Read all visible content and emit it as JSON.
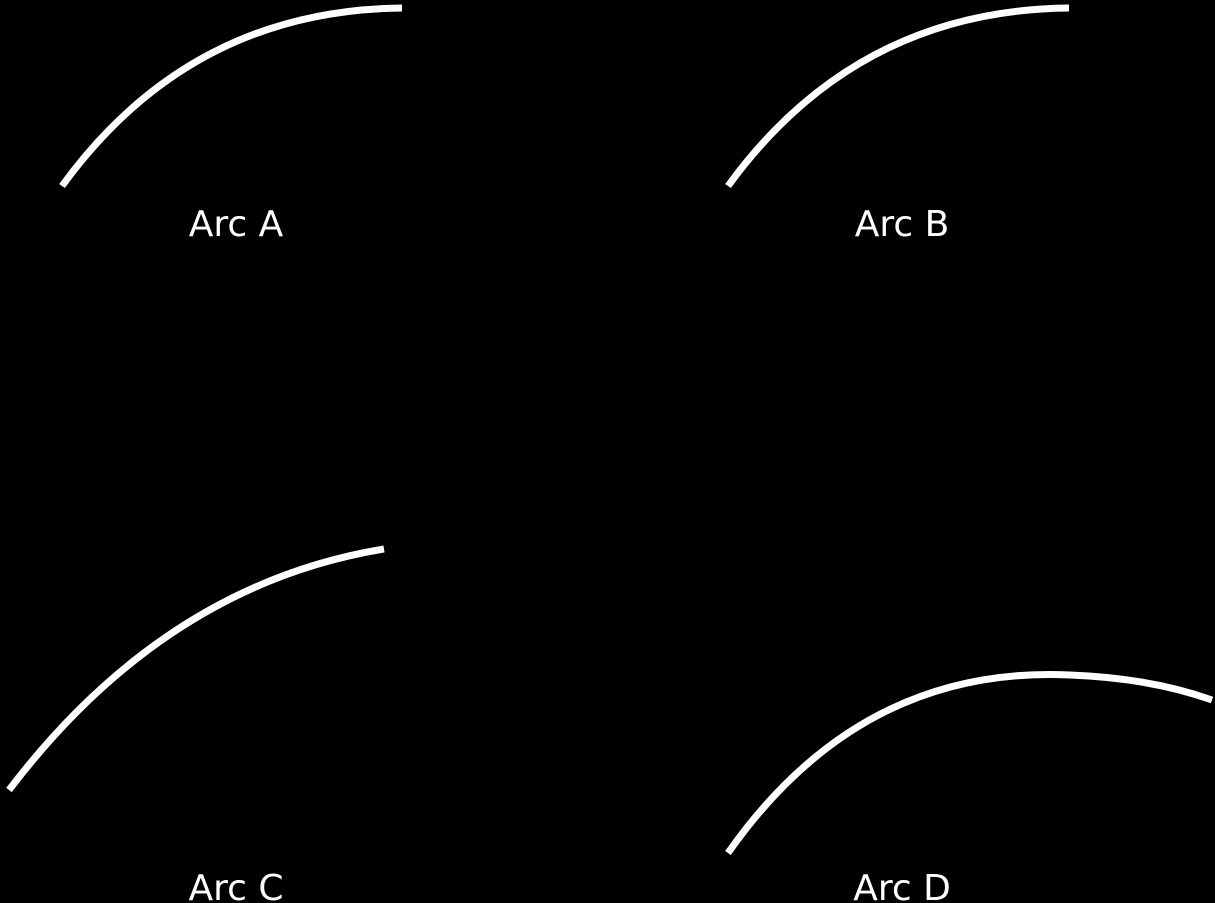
{
  "diagram": {
    "background_color": "#000000",
    "stroke_color": "#ffffff",
    "label_color": "#ffffff",
    "arcs": [
      {
        "id": "a",
        "label": "Arc A"
      },
      {
        "id": "b",
        "label": "Arc B"
      },
      {
        "id": "c",
        "label": "Arc C"
      },
      {
        "id": "d",
        "label": "Arc D"
      }
    ]
  }
}
